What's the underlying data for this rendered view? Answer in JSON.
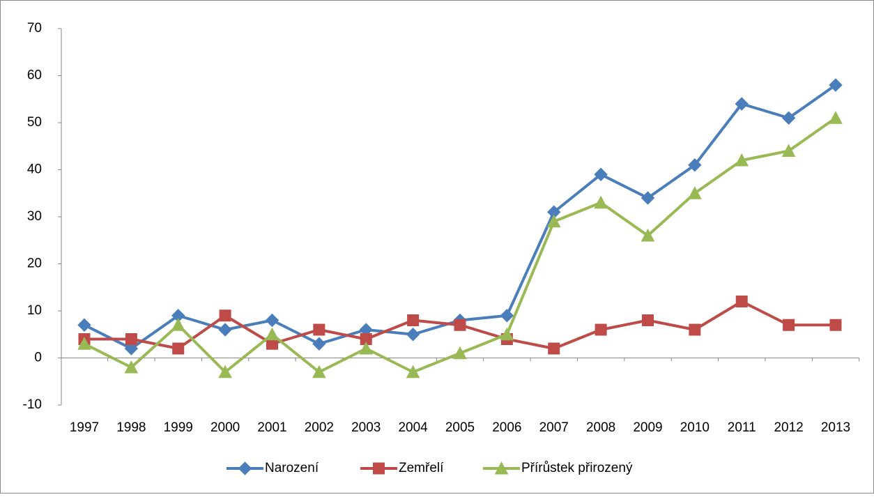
{
  "chart_data": {
    "type": "line",
    "categories": [
      "1997",
      "1998",
      "1999",
      "2000",
      "2001",
      "2002",
      "2003",
      "2004",
      "2005",
      "2006",
      "2007",
      "2008",
      "2009",
      "2010",
      "2011",
      "2012",
      "2013"
    ],
    "series": [
      {
        "name": "Narození",
        "color": "#4a7ebb",
        "marker": "diamond",
        "values": [
          7,
          2,
          9,
          6,
          8,
          3,
          6,
          5,
          8,
          9,
          31,
          39,
          34,
          41,
          54,
          51,
          58
        ]
      },
      {
        "name": "Zemřelí",
        "color": "#be4b48",
        "marker": "square",
        "values": [
          4,
          4,
          2,
          9,
          3,
          6,
          4,
          8,
          7,
          4,
          2,
          6,
          8,
          6,
          12,
          7,
          7
        ]
      },
      {
        "name": "Přírůstek přirozený",
        "color": "#98b954",
        "marker": "triangle",
        "values": [
          3,
          -2,
          7,
          -3,
          5,
          -3,
          2,
          -3,
          1,
          5,
          29,
          33,
          26,
          35,
          42,
          44,
          51
        ]
      }
    ],
    "ylim": [
      -10,
      70
    ],
    "yticks": [
      -10,
      0,
      10,
      20,
      30,
      40,
      50,
      60,
      70
    ],
    "grid": false,
    "legend": "bottom"
  }
}
